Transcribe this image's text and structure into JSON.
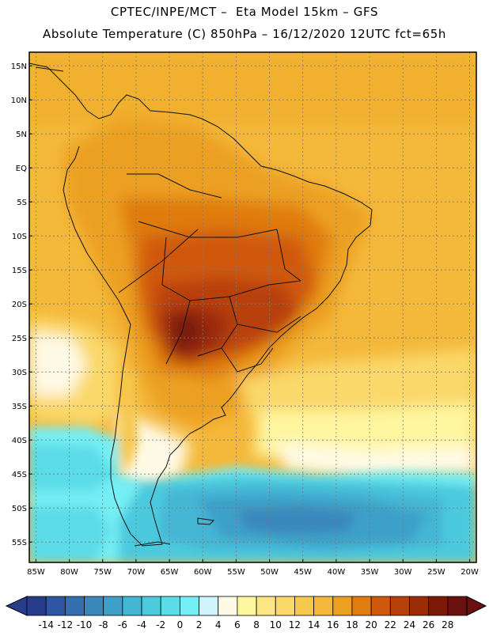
{
  "header": {
    "line1": "CPTEC/INPE/MCT –  Eta Model 15km – GFS",
    "line2": "Absolute Temperature (C) 850hPa – 16/12/2020 12UTC fct=65h"
  },
  "map": {
    "lat_labels": [
      "15N",
      "10N",
      "5N",
      "EQ",
      "5S",
      "10S",
      "15S",
      "20S",
      "25S",
      "30S",
      "35S",
      "40S",
      "45S",
      "50S",
      "55S"
    ],
    "lat_values": [
      15,
      10,
      5,
      0,
      -5,
      -10,
      -15,
      -20,
      -25,
      -30,
      -35,
      -40,
      -45,
      -50,
      -55
    ],
    "lon_labels": [
      "85W",
      "80W",
      "75W",
      "70W",
      "65W",
      "60W",
      "55W",
      "50W",
      "45W",
      "40W",
      "35W",
      "30W",
      "25W",
      "20W"
    ],
    "lon_values": [
      -85,
      -80,
      -75,
      -70,
      -65,
      -60,
      -55,
      -50,
      -45,
      -40,
      -35,
      -30,
      -25,
      -20
    ],
    "lat_range": [
      -58,
      17
    ],
    "lon_range": [
      -86,
      -19
    ]
  },
  "colorbar": {
    "labels": [
      "-14",
      "-12",
      "-10",
      "-8",
      "-6",
      "-4",
      "-2",
      "0",
      "2",
      "4",
      "6",
      "8",
      "10",
      "12",
      "14",
      "16",
      "18",
      "20",
      "22",
      "24",
      "26",
      "28"
    ],
    "colors": [
      "#283c8c",
      "#2f56a4",
      "#3470b0",
      "#3a88bc",
      "#3ea0c8",
      "#44b6d4",
      "#4ccade",
      "#5cdce8",
      "#74eef4",
      "#cff4fb",
      "#fffae6",
      "#fff6a0",
      "#fbe684",
      "#fad86a",
      "#f7c850",
      "#f4b83a",
      "#eca020",
      "#e07c10",
      "#d0580c",
      "#b8400a",
      "#9c2c08",
      "#7c1a08",
      "#6a1010"
    ],
    "left_arrow_color": "#283c8c",
    "right_arrow_color": "#6a1010"
  }
}
